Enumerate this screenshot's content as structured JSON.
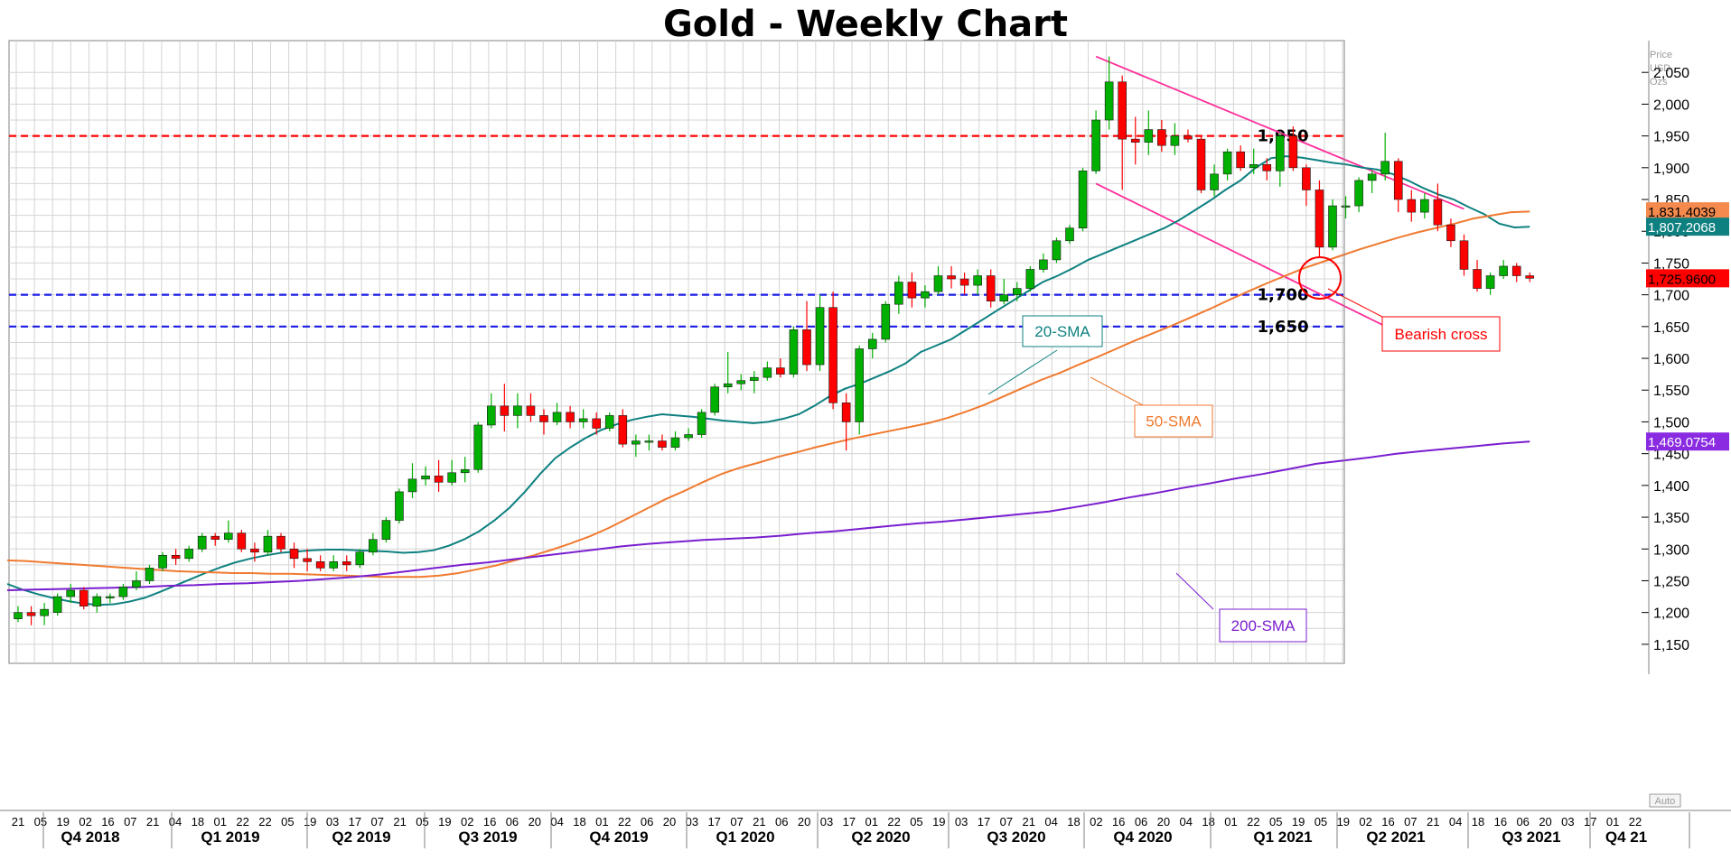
{
  "chart_data": {
    "type": "candlestick",
    "title": "Gold - Weekly Chart",
    "y_unit": [
      "Price",
      "USD",
      "Ozs"
    ],
    "ylim": [
      1120,
      2100
    ],
    "y_ticks": [
      1150,
      1200,
      1250,
      1300,
      1350,
      1400,
      1450,
      1500,
      1550,
      1600,
      1650,
      1700,
      1750,
      1800,
      1850,
      1900,
      1950,
      2000,
      2050
    ],
    "y_tick_labels": [
      "1,150",
      "1,200",
      "1,250",
      "1,300",
      "1,350",
      "1,400",
      "1,450",
      "1,500",
      "1,550",
      "1,600",
      "1,650",
      "1,700",
      "1,750",
      "1,800",
      "1,850",
      "1,900",
      "1,950",
      "2,000",
      "2,050"
    ],
    "auto_label": "Auto",
    "x_week_labels": [
      "21",
      "05",
      "19",
      "02",
      "16",
      "07",
      "21",
      "04",
      "18",
      "01",
      "22",
      "22",
      "05",
      "19",
      "03",
      "17",
      "07",
      "21",
      "05",
      "19",
      "02",
      "16",
      "06",
      "20",
      "04",
      "18",
      "01",
      "22",
      "06",
      "20",
      "03",
      "17",
      "07",
      "21",
      "06",
      "20",
      "03",
      "17",
      "01",
      "22",
      "05",
      "19",
      "03",
      "17",
      "07",
      "21",
      "04",
      "18",
      "02",
      "16",
      "06",
      "20",
      "04",
      "18",
      "01",
      "22",
      "05",
      "19",
      "05",
      "19",
      "02",
      "16",
      "07",
      "21",
      "04",
      "18",
      "16",
      "06",
      "20",
      "03",
      "17",
      "01",
      "22"
    ],
    "x_quarter_labels": [
      "Q4 2018",
      "Q1 2019",
      "Q2 2019",
      "Q3 2019",
      "Q4 2019",
      "Q1 2020",
      "Q2 2020",
      "Q3 2020",
      "Q4 2020",
      "Q1 2021",
      "Q2 2021",
      "Q3 2021",
      "Q4 21"
    ],
    "candles": [
      {
        "o": 1190,
        "h": 1210,
        "l": 1185,
        "c": 1200
      },
      {
        "o": 1200,
        "h": 1210,
        "l": 1180,
        "c": 1195
      },
      {
        "o": 1195,
        "h": 1215,
        "l": 1180,
        "c": 1205
      },
      {
        "o": 1200,
        "h": 1230,
        "l": 1195,
        "c": 1225
      },
      {
        "o": 1225,
        "h": 1245,
        "l": 1215,
        "c": 1235
      },
      {
        "o": 1235,
        "h": 1240,
        "l": 1205,
        "c": 1210
      },
      {
        "o": 1210,
        "h": 1230,
        "l": 1200,
        "c": 1225
      },
      {
        "o": 1225,
        "h": 1230,
        "l": 1215,
        "c": 1225
      },
      {
        "o": 1225,
        "h": 1245,
        "l": 1220,
        "c": 1240
      },
      {
        "o": 1240,
        "h": 1265,
        "l": 1235,
        "c": 1250
      },
      {
        "o": 1250,
        "h": 1275,
        "l": 1245,
        "c": 1270
      },
      {
        "o": 1270,
        "h": 1295,
        "l": 1265,
        "c": 1290
      },
      {
        "o": 1290,
        "h": 1300,
        "l": 1275,
        "c": 1285
      },
      {
        "o": 1285,
        "h": 1305,
        "l": 1280,
        "c": 1300
      },
      {
        "o": 1300,
        "h": 1325,
        "l": 1295,
        "c": 1320
      },
      {
        "o": 1320,
        "h": 1325,
        "l": 1305,
        "c": 1315
      },
      {
        "o": 1315,
        "h": 1345,
        "l": 1310,
        "c": 1325
      },
      {
        "o": 1325,
        "h": 1330,
        "l": 1295,
        "c": 1300
      },
      {
        "o": 1300,
        "h": 1310,
        "l": 1280,
        "c": 1295
      },
      {
        "o": 1295,
        "h": 1330,
        "l": 1290,
        "c": 1320
      },
      {
        "o": 1320,
        "h": 1325,
        "l": 1295,
        "c": 1300
      },
      {
        "o": 1300,
        "h": 1310,
        "l": 1270,
        "c": 1285
      },
      {
        "o": 1285,
        "h": 1300,
        "l": 1265,
        "c": 1280
      },
      {
        "o": 1280,
        "h": 1290,
        "l": 1265,
        "c": 1270
      },
      {
        "o": 1270,
        "h": 1290,
        "l": 1265,
        "c": 1280
      },
      {
        "o": 1280,
        "h": 1290,
        "l": 1265,
        "c": 1275
      },
      {
        "o": 1275,
        "h": 1300,
        "l": 1270,
        "c": 1295
      },
      {
        "o": 1295,
        "h": 1325,
        "l": 1290,
        "c": 1315
      },
      {
        "o": 1315,
        "h": 1350,
        "l": 1310,
        "c": 1345
      },
      {
        "o": 1345,
        "h": 1395,
        "l": 1340,
        "c": 1390
      },
      {
        "o": 1390,
        "h": 1435,
        "l": 1380,
        "c": 1410
      },
      {
        "o": 1410,
        "h": 1430,
        "l": 1400,
        "c": 1415
      },
      {
        "o": 1415,
        "h": 1440,
        "l": 1390,
        "c": 1405
      },
      {
        "o": 1405,
        "h": 1440,
        "l": 1400,
        "c": 1420
      },
      {
        "o": 1420,
        "h": 1445,
        "l": 1405,
        "c": 1425
      },
      {
        "o": 1425,
        "h": 1500,
        "l": 1420,
        "c": 1495
      },
      {
        "o": 1495,
        "h": 1545,
        "l": 1490,
        "c": 1525
      },
      {
        "o": 1525,
        "h": 1560,
        "l": 1485,
        "c": 1510
      },
      {
        "o": 1510,
        "h": 1545,
        "l": 1490,
        "c": 1525
      },
      {
        "o": 1525,
        "h": 1545,
        "l": 1500,
        "c": 1510
      },
      {
        "o": 1510,
        "h": 1520,
        "l": 1480,
        "c": 1500
      },
      {
        "o": 1500,
        "h": 1530,
        "l": 1495,
        "c": 1515
      },
      {
        "o": 1515,
        "h": 1525,
        "l": 1490,
        "c": 1500
      },
      {
        "o": 1500,
        "h": 1520,
        "l": 1490,
        "c": 1505
      },
      {
        "o": 1505,
        "h": 1515,
        "l": 1480,
        "c": 1490
      },
      {
        "o": 1490,
        "h": 1515,
        "l": 1485,
        "c": 1510
      },
      {
        "o": 1510,
        "h": 1520,
        "l": 1460,
        "c": 1465
      },
      {
        "o": 1465,
        "h": 1480,
        "l": 1445,
        "c": 1470
      },
      {
        "o": 1470,
        "h": 1480,
        "l": 1455,
        "c": 1470
      },
      {
        "o": 1470,
        "h": 1480,
        "l": 1455,
        "c": 1460
      },
      {
        "o": 1460,
        "h": 1485,
        "l": 1455,
        "c": 1475
      },
      {
        "o": 1475,
        "h": 1490,
        "l": 1470,
        "c": 1480
      },
      {
        "o": 1480,
        "h": 1520,
        "l": 1475,
        "c": 1515
      },
      {
        "o": 1515,
        "h": 1560,
        "l": 1510,
        "c": 1555
      },
      {
        "o": 1555,
        "h": 1610,
        "l": 1545,
        "c": 1560
      },
      {
        "o": 1560,
        "h": 1575,
        "l": 1550,
        "c": 1565
      },
      {
        "o": 1565,
        "h": 1580,
        "l": 1545,
        "c": 1570
      },
      {
        "o": 1570,
        "h": 1595,
        "l": 1565,
        "c": 1585
      },
      {
        "o": 1585,
        "h": 1600,
        "l": 1570,
        "c": 1575
      },
      {
        "o": 1575,
        "h": 1650,
        "l": 1570,
        "c": 1645
      },
      {
        "o": 1645,
        "h": 1690,
        "l": 1580,
        "c": 1590
      },
      {
        "o": 1590,
        "h": 1700,
        "l": 1580,
        "c": 1680
      },
      {
        "o": 1680,
        "h": 1705,
        "l": 1520,
        "c": 1530
      },
      {
        "o": 1530,
        "h": 1545,
        "l": 1455,
        "c": 1500
      },
      {
        "o": 1500,
        "h": 1620,
        "l": 1480,
        "c": 1615
      },
      {
        "o": 1615,
        "h": 1640,
        "l": 1600,
        "c": 1630
      },
      {
        "o": 1630,
        "h": 1690,
        "l": 1625,
        "c": 1685
      },
      {
        "o": 1685,
        "h": 1730,
        "l": 1670,
        "c": 1720
      },
      {
        "o": 1720,
        "h": 1735,
        "l": 1680,
        "c": 1695
      },
      {
        "o": 1695,
        "h": 1715,
        "l": 1680,
        "c": 1705
      },
      {
        "o": 1705,
        "h": 1745,
        "l": 1700,
        "c": 1730
      },
      {
        "o": 1730,
        "h": 1745,
        "l": 1710,
        "c": 1725
      },
      {
        "o": 1725,
        "h": 1735,
        "l": 1700,
        "c": 1715
      },
      {
        "o": 1715,
        "h": 1740,
        "l": 1700,
        "c": 1730
      },
      {
        "o": 1730,
        "h": 1740,
        "l": 1680,
        "c": 1690
      },
      {
        "o": 1690,
        "h": 1725,
        "l": 1685,
        "c": 1700
      },
      {
        "o": 1700,
        "h": 1720,
        "l": 1690,
        "c": 1710
      },
      {
        "o": 1710,
        "h": 1745,
        "l": 1705,
        "c": 1740
      },
      {
        "o": 1740,
        "h": 1765,
        "l": 1735,
        "c": 1755
      },
      {
        "o": 1755,
        "h": 1790,
        "l": 1750,
        "c": 1785
      },
      {
        "o": 1785,
        "h": 1810,
        "l": 1780,
        "c": 1805
      },
      {
        "o": 1805,
        "h": 1900,
        "l": 1800,
        "c": 1895
      },
      {
        "o": 1895,
        "h": 1990,
        "l": 1890,
        "c": 1975
      },
      {
        "o": 1975,
        "h": 2075,
        "l": 1960,
        "c": 2035
      },
      {
        "o": 2035,
        "h": 2045,
        "l": 1865,
        "c": 1945
      },
      {
        "o": 1945,
        "h": 1980,
        "l": 1905,
        "c": 1940
      },
      {
        "o": 1940,
        "h": 1990,
        "l": 1920,
        "c": 1960
      },
      {
        "o": 1960,
        "h": 1975,
        "l": 1925,
        "c": 1935
      },
      {
        "o": 1935,
        "h": 1970,
        "l": 1920,
        "c": 1950
      },
      {
        "o": 1950,
        "h": 1960,
        "l": 1940,
        "c": 1945
      },
      {
        "o": 1945,
        "h": 1950,
        "l": 1860,
        "c": 1865
      },
      {
        "o": 1865,
        "h": 1905,
        "l": 1855,
        "c": 1890
      },
      {
        "o": 1890,
        "h": 1930,
        "l": 1880,
        "c": 1925
      },
      {
        "o": 1925,
        "h": 1935,
        "l": 1895,
        "c": 1900
      },
      {
        "o": 1900,
        "h": 1930,
        "l": 1890,
        "c": 1905
      },
      {
        "o": 1905,
        "h": 1915,
        "l": 1880,
        "c": 1895
      },
      {
        "o": 1895,
        "h": 1955,
        "l": 1870,
        "c": 1950
      },
      {
        "o": 1950,
        "h": 1965,
        "l": 1895,
        "c": 1900
      },
      {
        "o": 1900,
        "h": 1905,
        "l": 1840,
        "c": 1865
      },
      {
        "o": 1865,
        "h": 1880,
        "l": 1760,
        "c": 1775
      },
      {
        "o": 1775,
        "h": 1850,
        "l": 1770,
        "c": 1840
      },
      {
        "o": 1840,
        "h": 1855,
        "l": 1820,
        "c": 1840
      },
      {
        "o": 1840,
        "h": 1885,
        "l": 1830,
        "c": 1880
      },
      {
        "o": 1880,
        "h": 1895,
        "l": 1860,
        "c": 1890
      },
      {
        "o": 1890,
        "h": 1955,
        "l": 1880,
        "c": 1910
      },
      {
        "o": 1910,
        "h": 1915,
        "l": 1830,
        "c": 1850
      },
      {
        "o": 1850,
        "h": 1865,
        "l": 1815,
        "c": 1830
      },
      {
        "o": 1830,
        "h": 1860,
        "l": 1820,
        "c": 1850
      },
      {
        "o": 1850,
        "h": 1875,
        "l": 1800,
        "c": 1810
      },
      {
        "o": 1810,
        "h": 1820,
        "l": 1775,
        "c": 1785
      },
      {
        "o": 1785,
        "h": 1795,
        "l": 1730,
        "c": 1740
      },
      {
        "o": 1740,
        "h": 1755,
        "l": 1705,
        "c": 1710
      },
      {
        "o": 1710,
        "h": 1735,
        "l": 1700,
        "c": 1730
      },
      {
        "o": 1730,
        "h": 1755,
        "l": 1725,
        "c": 1745
      },
      {
        "o": 1745,
        "h": 1750,
        "l": 1720,
        "c": 1730
      },
      {
        "o": 1730,
        "h": 1735,
        "l": 1720,
        "c": 1726
      }
    ],
    "series": [
      {
        "name": "20-SMA",
        "color": "#0e8080",
        "values": [
          1245,
          1236,
          1229,
          1223,
          1218,
          1214,
          1212,
          1213,
          1217,
          1223,
          1232,
          1242,
          1252,
          1262,
          1271,
          1279,
          1285,
          1290,
          1294,
          1296,
          1298,
          1299,
          1299,
          1298,
          1297,
          1296,
          1294,
          1295,
          1298,
          1305,
          1315,
          1328,
          1345,
          1365,
          1390,
          1418,
          1443,
          1460,
          1475,
          1487,
          1496,
          1503,
          1508,
          1512,
          1510,
          1508,
          1505,
          1502,
          1500,
          1498,
          1500,
          1505,
          1512,
          1525,
          1540,
          1552,
          1560,
          1570,
          1580,
          1592,
          1610,
          1620,
          1630,
          1645,
          1660,
          1675,
          1690,
          1705,
          1720,
          1730,
          1742,
          1755,
          1765,
          1775,
          1785,
          1795,
          1805,
          1818,
          1833,
          1848,
          1865,
          1880,
          1900,
          1915,
          1918,
          1916,
          1912,
          1908,
          1905,
          1900,
          1897,
          1890,
          1880,
          1868,
          1858,
          1850,
          1838,
          1827,
          1812,
          1806,
          1807
        ]
      },
      {
        "name": "50-SMA",
        "color": "#f07a30",
        "values": [
          1282,
          1281,
          1279,
          1277,
          1275,
          1273,
          1271,
          1269,
          1267,
          1265,
          1264,
          1263,
          1262,
          1262,
          1261,
          1261,
          1260,
          1259,
          1258,
          1257,
          1256,
          1256,
          1256,
          1258,
          1262,
          1268,
          1274,
          1282,
          1290,
          1299,
          1309,
          1320,
          1333,
          1348,
          1363,
          1378,
          1391,
          1405,
          1418,
          1428,
          1436,
          1445,
          1452,
          1460,
          1467,
          1474,
          1480,
          1486,
          1492,
          1498,
          1506,
          1516,
          1527,
          1540,
          1553,
          1566,
          1577,
          1590,
          1602,
          1615,
          1628,
          1640,
          1652,
          1665,
          1678,
          1692,
          1705,
          1718,
          1730,
          1742,
          1752,
          1762,
          1772,
          1781,
          1790,
          1798,
          1805,
          1812,
          1820,
          1825,
          1830,
          1831
        ]
      },
      {
        "name": "200-SMA",
        "color": "#7a1ecf",
        "values": [
          1235,
          1236,
          1237,
          1238,
          1239,
          1240,
          1242,
          1243,
          1245,
          1246,
          1248,
          1250,
          1253,
          1256,
          1260,
          1265,
          1270,
          1275,
          1279,
          1284,
          1289,
          1294,
          1299,
          1304,
          1308,
          1311,
          1314,
          1316,
          1318,
          1321,
          1325,
          1328,
          1332,
          1336,
          1340,
          1343,
          1347,
          1351,
          1355,
          1359,
          1366,
          1373,
          1381,
          1388,
          1396,
          1403,
          1411,
          1418,
          1426,
          1434,
          1439,
          1444,
          1450,
          1454,
          1458,
          1462,
          1466,
          1469
        ]
      }
    ],
    "horizontal_levels": [
      {
        "value": 1950,
        "label": "1,950",
        "color": "#ff0000"
      },
      {
        "value": 1700,
        "label": "1,700",
        "color": "#1a1ae6"
      },
      {
        "value": 1650,
        "label": "1,650",
        "color": "#1a1ae6"
      }
    ],
    "trend_channel": {
      "color": "#ff2e9a",
      "upper": [
        [
          82,
          2075
        ],
        [
          110,
          1835
        ]
      ],
      "lower": [
        [
          82,
          1875
        ],
        [
          107,
          1620
        ]
      ]
    },
    "price_tags": [
      {
        "value": 1831.4039,
        "label": "1,831.4039",
        "bg": "#f58a4e",
        "fg": "#000000"
      },
      {
        "value": 1807.2068,
        "label": "1,807.2068",
        "bg": "#0e8080",
        "fg": "#ffffff"
      },
      {
        "value": 1725.96,
        "label": "1,725.9600",
        "bg": "#ff0000",
        "fg": "#000000"
      },
      {
        "value": 1469.0754,
        "label": "1,469.0754",
        "bg": "#8a2be2",
        "fg": "#ffffff"
      }
    ],
    "annotations": [
      {
        "text": "20-SMA",
        "color": "#0e8080"
      },
      {
        "text": "50-SMA",
        "color": "#f07a30"
      },
      {
        "text": "200-SMA",
        "color": "#7a1ecf"
      },
      {
        "text": "Bearish cross",
        "color": "#ff0000"
      }
    ],
    "grid": true
  }
}
